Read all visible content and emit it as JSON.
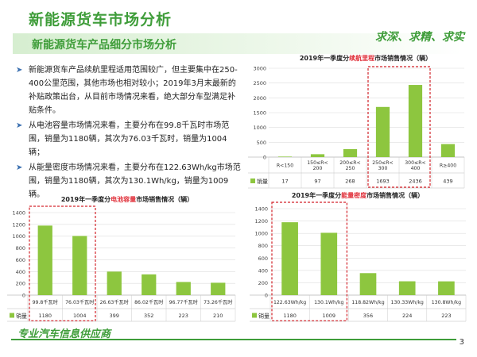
{
  "header": {
    "title": "新能源货车市场分析",
    "subtitle": "新能源货车产品细分市场分析",
    "slogan": "求深、求精、求实"
  },
  "bullets": [
    "新能源货车产品续航里程适用范围较广，但主要集中在250-400公里范围，其他市场也相对较小；2019年3月末最新的补贴政策出台，从目前市场情况来看，绝大部分车型满足补贴条件。",
    "从电池容量市场情况来看，主要分布在99.8千瓦时市场范围，销量为1180辆，其次为76.03千瓦时，销量为1004辆；",
    "从能量密度市场情况来看，主要分布在122.63Wh/kg市场范围，销量为1180辆，其次为130.1Wh/kg，销量为1009辆。"
  ],
  "footer": {
    "text": "专业汽车信息供应商",
    "page": "3"
  },
  "chart_data": [
    {
      "id": "range",
      "type": "bar",
      "title_prefix": "2019年一季度分",
      "title_highlight": "续航里程",
      "title_suffix": "市场销售情况（辆）",
      "categories": [
        "R<150",
        "150≤R<200",
        "200≤R<250",
        "250≤R<300",
        "300≤R<400",
        "R≥400"
      ],
      "values": [
        17,
        97,
        268,
        1693,
        2436,
        439
      ],
      "value_labels": [
        "17",
        "97",
        "268",
        "1693",
        "2436",
        "439"
      ],
      "series_name": "销量",
      "ylim": [
        0,
        3000
      ],
      "yticks": [
        0,
        500,
        1000,
        1500,
        2000,
        2500,
        3000
      ],
      "color": "#8dc63f",
      "highlight_categories": [
        3,
        4
      ]
    },
    {
      "id": "battery",
      "type": "bar",
      "title_prefix": "2019年一季度分",
      "title_highlight": "电池容量",
      "title_suffix": "市场销售情况（辆）",
      "categories": [
        "99.8千瓦时",
        "76.03千瓦时",
        "26.63千瓦时",
        "86.02千瓦时",
        "96.77千瓦时",
        "73.26千瓦时"
      ],
      "values": [
        1180,
        1004,
        399,
        352,
        223,
        210
      ],
      "value_labels": [
        "1180",
        "1004",
        "399",
        "352",
        "223",
        "210"
      ],
      "series_name": "销量",
      "ylim": [
        0,
        1400
      ],
      "yticks": [
        0,
        200,
        400,
        600,
        800,
        1000,
        1200,
        1400
      ],
      "color": "#8dc63f",
      "highlight_categories": [
        0,
        1
      ]
    },
    {
      "id": "density",
      "type": "bar",
      "title_prefix": "2019年一季度分",
      "title_highlight": "能量密度",
      "title_suffix": "市场销售情况（辆）",
      "categories": [
        "122.63Wh/kg",
        "130.1Wh/kg",
        "118.82Wh/kg",
        "130.33Wh/kg",
        "130.8Wh/kg"
      ],
      "values": [
        1180,
        1009,
        356,
        224,
        223
      ],
      "value_labels": [
        "1180",
        "1009",
        "356",
        "224",
        "223"
      ],
      "series_name": "销量",
      "ylim": [
        0,
        1400
      ],
      "yticks": [
        0,
        200,
        400,
        600,
        800,
        1000,
        1200,
        1400
      ],
      "color": "#8dc63f",
      "highlight_categories": [
        0,
        1
      ]
    }
  ]
}
